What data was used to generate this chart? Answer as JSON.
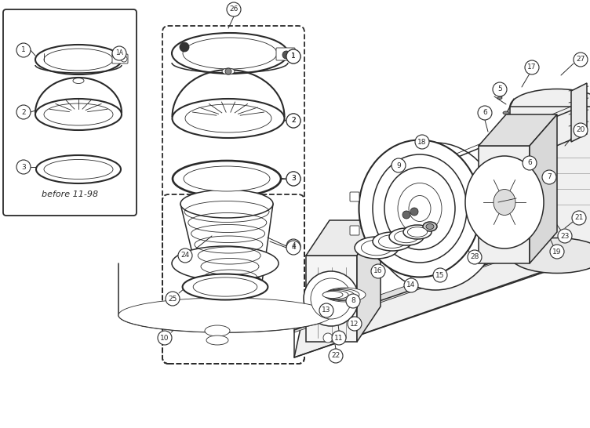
{
  "bg_color": "#ffffff",
  "line_color": "#2a2a2a",
  "fig_width": 7.52,
  "fig_height": 5.46,
  "dpi": 100
}
